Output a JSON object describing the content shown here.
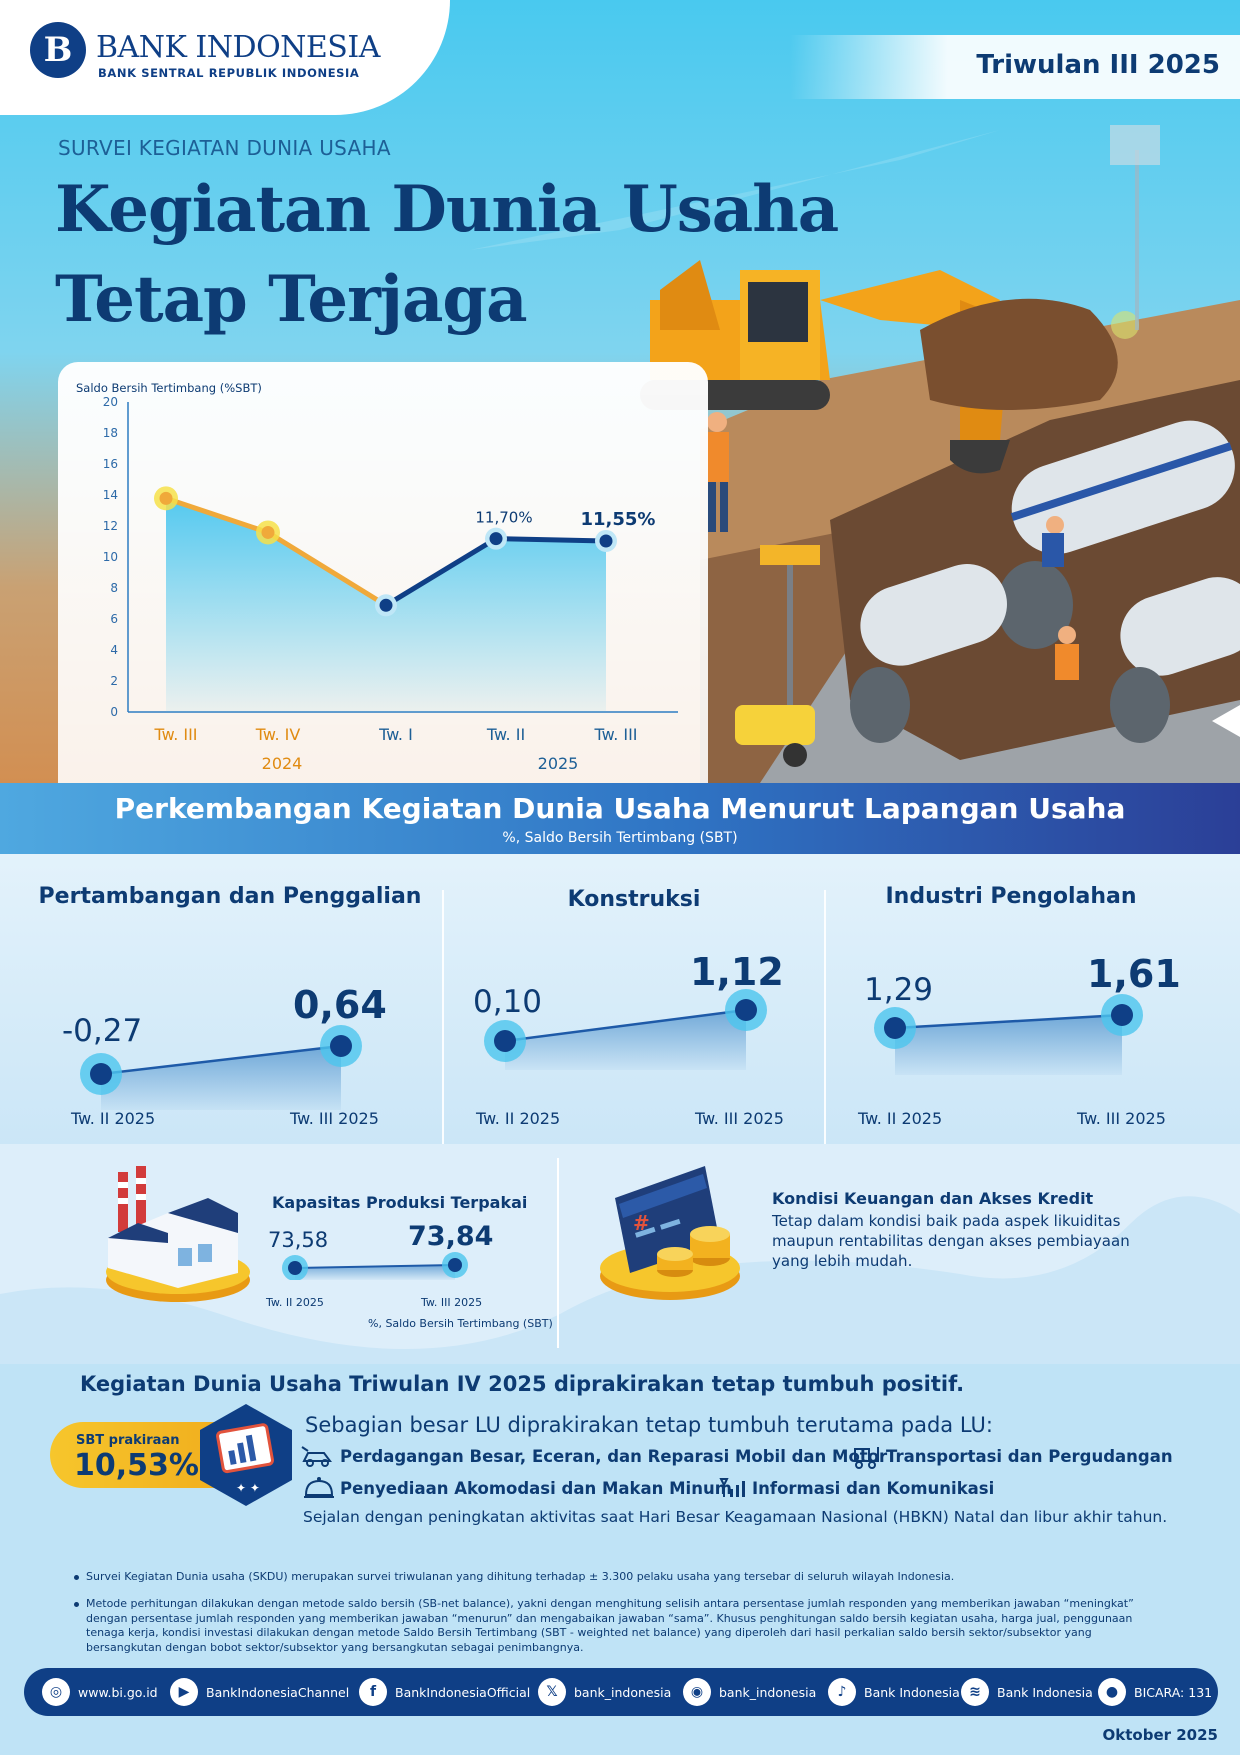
{
  "header": {
    "logo_name": "BANK INDONESIA",
    "logo_sub": "BANK SENTRAL REPUBLIK INDONESIA",
    "period": "Triwulan III 2025",
    "kicker": "SURVEI KEGIATAN DUNIA USAHA",
    "headline_line1": "Kegiatan Dunia Usaha",
    "headline_line2": "Tetap Terjaga"
  },
  "chart_data": {
    "type": "line",
    "title": "",
    "ylabel": "Saldo Bersih Tertimbang (%SBT)",
    "ylim": [
      0,
      20
    ],
    "yticks": [
      "0",
      "2",
      "4",
      "6",
      "8",
      "10",
      "12",
      "14",
      "16",
      "18",
      "20"
    ],
    "categories": [
      "Tw. III",
      "Tw. IV",
      "Tw. I",
      "Tw. II",
      "Tw. III"
    ],
    "year_groups": [
      {
        "label": "2024",
        "span": [
          0,
          1
        ]
      },
      {
        "label": "2025",
        "span": [
          2,
          4
        ]
      }
    ],
    "values": [
      14.3,
      12.1,
      7.4,
      11.7,
      11.55
    ],
    "data_labels": [
      "",
      "",
      "",
      "11,70%",
      "11,55%"
    ],
    "colors": {
      "year_2024": "#f0a93a",
      "year_2025": "#0f3f86",
      "area": "#4cc6ee"
    },
    "grid": false
  },
  "section": {
    "title": "Perkembangan Kegiatan Dunia Usaha Menurut Lapangan Usaha",
    "subtitle": "%, Saldo Bersih Tertimbang (SBT)"
  },
  "sectors": [
    {
      "name": "Pertambangan dan Penggalian",
      "prev_label": "Tw. II 2025",
      "curr_label": "Tw. III 2025",
      "prev": "-0,27",
      "curr": "0,64",
      "prev_value": -0.27,
      "curr_value": 0.64
    },
    {
      "name": "Konstruksi",
      "prev_label": "Tw. II 2025",
      "curr_label": "Tw. III 2025",
      "prev": "0,10",
      "curr": "1,12",
      "prev_value": 0.1,
      "curr_value": 1.12
    },
    {
      "name": "Industri Pengolahan",
      "prev_label": "Tw. II 2025",
      "curr_label": "Tw. III 2025",
      "prev": "1,29",
      "curr": "1,61",
      "prev_value": 1.29,
      "curr_value": 1.61
    }
  ],
  "capacity": {
    "title": "Kapasitas Produksi Terpakai",
    "prev": "73,58",
    "curr": "73,84",
    "prev_label": "Tw. II 2025",
    "curr_label": "Tw. III 2025",
    "unit": "%, Saldo Bersih Tertimbang (SBT)"
  },
  "finance": {
    "title": "Kondisi Keuangan dan Akses Kredit",
    "text": "Tetap dalam kondisi baik pada aspek likuiditas maupun rentabilitas dengan akses pembiayaan yang lebih mudah."
  },
  "outlook": {
    "title": "Kegiatan Dunia Usaha Triwulan IV 2025 diprakirakan tetap tumbuh positif.",
    "sbt_label": "SBT prakiraan",
    "sbt_value": "10,53%",
    "intro": "Sebagian besar LU diprakirakan tetap tumbuh terutama pada LU:",
    "sectors": [
      {
        "label": "Perdagangan Besar, Eceran, dan Reparasi Mobil dan Motor",
        "icon": "car-repair-icon"
      },
      {
        "label": "Transportasi dan Pergudangan",
        "icon": "forklift-icon"
      },
      {
        "label": "Penyediaan Akomodasi dan Makan Minum",
        "icon": "food-cloche-icon"
      },
      {
        "label": "Informasi dan Komunikasi",
        "icon": "signal-bars-icon"
      }
    ],
    "note": "Sejalan dengan peningkatan aktivitas saat Hari Besar Keagamaan Nasional (HBKN) Natal dan libur akhir tahun."
  },
  "footnotes": {
    "note1": "Survei Kegiatan Dunia usaha (SKDU) merupakan survei triwulanan yang dihitung terhadap ± 3.300 pelaku usaha yang tersebar di seluruh wilayah Indonesia.",
    "note2": "Metode perhitungan dilakukan dengan metode saldo bersih (SB-net balance), yakni dengan menghitung selisih antara persentase jumlah responden yang memberikan jawaban “meningkat” dengan persentase jumlah responden yang memberikan jawaban “menurun” dan mengabaikan jawaban “sama”. Khusus penghitungan saldo bersih kegiatan usaha, harga jual, penggunaan tenaga kerja, kondisi investasi dilakukan dengan metode Saldo Bersih Tertimbang (SBT - weighted net balance) yang diperoleh dari hasil perkalian saldo bersih sektor/subsektor yang bersangkutan dengan bobot sektor/subsektor yang bersangkutan sebagai penimbangnya."
  },
  "social": [
    {
      "icon": "globe-icon",
      "glyph": "◎",
      "text": "www.bi.go.id"
    },
    {
      "icon": "youtube-icon",
      "glyph": "▶",
      "text": "BankIndonesiaChannel"
    },
    {
      "icon": "facebook-icon",
      "glyph": "f",
      "text": "BankIndonesiaOfficial"
    },
    {
      "icon": "x-icon",
      "glyph": "𝕏",
      "text": "bank_indonesia"
    },
    {
      "icon": "instagram-icon",
      "glyph": "◉",
      "text": "bank_indonesia"
    },
    {
      "icon": "tiktok-icon",
      "glyph": "♪",
      "text": "Bank Indonesia"
    },
    {
      "icon": "spotify-icon",
      "glyph": "≋",
      "text": "Bank Indonesia"
    },
    {
      "icon": "podcast-icon",
      "glyph": "●",
      "text": "BICARA: 131"
    }
  ],
  "release_date": "Oktober 2025"
}
